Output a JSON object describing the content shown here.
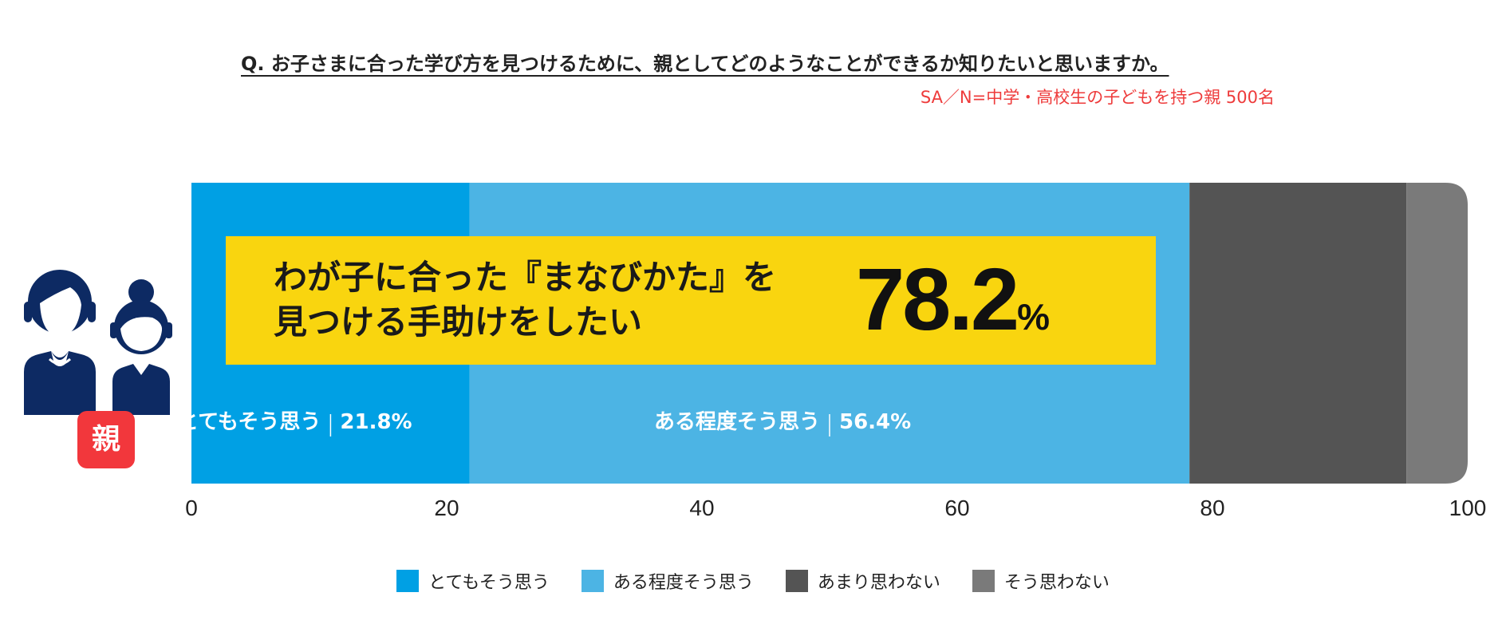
{
  "header": {
    "question": "Q. お子さまに合った学び方を見つけるために、親としてどのようなことができるか知りたいと思いますか。",
    "sample": "SA／N=中学・高校生の子どもを持つ親 500名"
  },
  "callout": {
    "line1": "わが子に合った『まなびかた』を",
    "line2": "見つける手助けをしたい",
    "value": "78.2",
    "unit": "%"
  },
  "respondent_badge": "親",
  "colors": {
    "callout_bg": "#f9d50f",
    "badge": "#f2373c",
    "people_icon": "#0d2a63",
    "sample_text": "#ee3b3b"
  },
  "chart_data": {
    "type": "bar",
    "orientation": "horizontal",
    "stacked": true,
    "categories": [
      "親"
    ],
    "xlim": [
      0,
      100
    ],
    "xticks": [
      0,
      20,
      40,
      60,
      80,
      100
    ],
    "grid": false,
    "legend_position": "bottom",
    "series": [
      {
        "name": "とてもそう思う",
        "values": [
          21.8
        ],
        "color": "#00a0e4",
        "label": "とてもそう思う",
        "value_label": "21.8%"
      },
      {
        "name": "ある程度そう思う",
        "values": [
          56.4
        ],
        "color": "#4cb4e4",
        "label": "ある程度そう思う",
        "value_label": "56.4%"
      },
      {
        "name": "あまり思わない",
        "values": [
          17.0
        ],
        "color": "#545454"
      },
      {
        "name": "そう思わない",
        "values": [
          4.8
        ],
        "color": "#7a7a7a"
      }
    ]
  }
}
